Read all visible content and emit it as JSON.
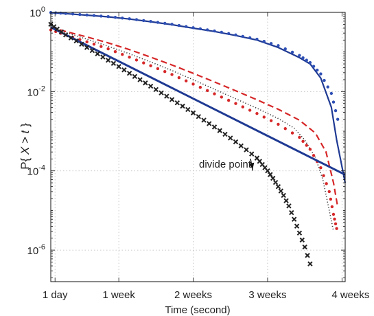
{
  "chart_data": {
    "type": "line",
    "title": "",
    "xlabel": "Time (second)",
    "ylabel": {
      "prefix": "P{ ",
      "var1": "X",
      "mid": " > ",
      "var2": "t",
      "suffix": " }"
    },
    "yscale": "log",
    "xlim": [
      0.6,
      28.3
    ],
    "ylim": [
      1.6e-07,
      1.0
    ],
    "x_ticks": [
      {
        "value": 1,
        "label": "1 day"
      },
      {
        "value": 7,
        "label": "1 week"
      },
      {
        "value": 14,
        "label": "2 weeks"
      },
      {
        "value": 21,
        "label": "3 weeks"
      },
      {
        "value": 28,
        "label": "4 weeks"
      }
    ],
    "y_ticks": [
      {
        "value": 1,
        "base": "10",
        "exp": "0"
      },
      {
        "value": 0.01,
        "base": "10",
        "exp": "-2"
      },
      {
        "value": 0.0001,
        "base": "10",
        "exp": "-4"
      },
      {
        "value": 1e-06,
        "base": "10",
        "exp": "-6"
      }
    ],
    "grid": true,
    "annotation": {
      "text": "divide point",
      "x": 19.6,
      "y": 0.00011
    },
    "series": [
      {
        "style": "solid",
        "color": "#1f3a93",
        "points": [
          [
            0.6,
            0.98
          ],
          [
            2,
            0.93
          ],
          [
            4,
            0.85
          ],
          [
            6,
            0.77
          ],
          [
            8,
            0.68
          ],
          [
            10,
            0.58
          ],
          [
            12,
            0.49
          ],
          [
            14,
            0.4
          ],
          [
            16,
            0.33
          ],
          [
            18,
            0.26
          ],
          [
            20,
            0.2
          ],
          [
            22,
            0.13
          ],
          [
            24,
            0.072
          ],
          [
            25,
            0.05
          ],
          [
            26,
            0.022
          ],
          [
            27,
            0.004
          ],
          [
            27.5,
            0.0006
          ],
          [
            28.3,
            5e-05
          ]
        ]
      },
      {
        "style": "dots",
        "color": "#2e4fb5",
        "points": [
          [
            0.6,
            0.99
          ],
          [
            2,
            0.94
          ],
          [
            4,
            0.86
          ],
          [
            6,
            0.78
          ],
          [
            8,
            0.69
          ],
          [
            10,
            0.59
          ],
          [
            12,
            0.5
          ],
          [
            14,
            0.41
          ],
          [
            16,
            0.34
          ],
          [
            18,
            0.27
          ],
          [
            20,
            0.21
          ],
          [
            22,
            0.145
          ],
          [
            24,
            0.082
          ],
          [
            25,
            0.054
          ],
          [
            26,
            0.028
          ],
          [
            27,
            0.009
          ],
          [
            27.6,
            0.002
          ]
        ]
      },
      {
        "style": "dashed",
        "color": "#d62728",
        "points": [
          [
            0.6,
            0.42
          ],
          [
            2,
            0.33
          ],
          [
            4,
            0.24
          ],
          [
            6,
            0.17
          ],
          [
            8,
            0.115
          ],
          [
            10,
            0.074
          ],
          [
            12,
            0.047
          ],
          [
            14,
            0.029
          ],
          [
            16,
            0.0175
          ],
          [
            18,
            0.0105
          ],
          [
            20,
            0.0062
          ],
          [
            22,
            0.0036
          ],
          [
            24,
            0.0019
          ],
          [
            25.5,
            0.0009
          ],
          [
            26.5,
            0.0003
          ],
          [
            27.2,
            5e-05
          ],
          [
            27.6,
            1.2e-05
          ]
        ]
      },
      {
        "style": "dotted-fine",
        "color": "#333333",
        "points": [
          [
            0.6,
            0.4
          ],
          [
            2,
            0.31
          ],
          [
            4,
            0.21
          ],
          [
            6,
            0.14
          ],
          [
            8,
            0.09
          ],
          [
            10,
            0.056
          ],
          [
            12,
            0.034
          ],
          [
            14,
            0.02
          ],
          [
            16,
            0.0115
          ],
          [
            18,
            0.0066
          ],
          [
            20,
            0.0038
          ],
          [
            22,
            0.0021
          ],
          [
            23.5,
            0.0012
          ],
          [
            24.5,
            0.0006
          ],
          [
            25.5,
            0.00022
          ],
          [
            26.2,
            6e-05
          ],
          [
            26.8,
            1e-05
          ],
          [
            27.2,
            3e-06
          ]
        ]
      },
      {
        "style": "dots",
        "color": "#d62728",
        "points": [
          [
            0.6,
            0.36
          ],
          [
            2,
            0.27
          ],
          [
            4,
            0.18
          ],
          [
            6,
            0.12
          ],
          [
            8,
            0.074
          ],
          [
            10,
            0.045
          ],
          [
            12,
            0.027
          ],
          [
            14,
            0.0155
          ],
          [
            16,
            0.0088
          ],
          [
            18,
            0.005
          ],
          [
            20,
            0.0028
          ],
          [
            22,
            0.0015
          ],
          [
            24,
            0.0007
          ],
          [
            25,
            0.00035
          ],
          [
            26,
            0.00012
          ],
          [
            26.8,
            3e-05
          ],
          [
            27.2,
            8e-06
          ],
          [
            27.5,
            3.5e-06
          ]
        ]
      },
      {
        "style": "solid-thick",
        "color": "#1f3a93",
        "points": [
          [
            0.6,
            0.42
          ],
          [
            28.3,
            8e-05
          ]
        ]
      },
      {
        "style": "crosses",
        "color": "#222222",
        "points": [
          [
            0.6,
            0.5
          ],
          [
            1.2,
            0.38
          ],
          [
            2,
            0.27
          ],
          [
            3,
            0.19
          ],
          [
            4,
            0.13
          ],
          [
            5,
            0.09
          ],
          [
            6,
            0.062
          ],
          [
            7,
            0.043
          ],
          [
            8,
            0.029
          ],
          [
            9,
            0.02
          ],
          [
            10,
            0.0137
          ],
          [
            11,
            0.0093
          ],
          [
            12,
            0.0063
          ],
          [
            13,
            0.0043
          ],
          [
            14,
            0.0029
          ],
          [
            15,
            0.0019
          ],
          [
            16,
            0.00128
          ],
          [
            17,
            0.00084
          ],
          [
            18,
            0.00054
          ],
          [
            19,
            0.00034
          ],
          [
            20,
            0.00021
          ],
          [
            20.5,
            0.000145
          ],
          [
            21,
            0.0001
          ],
          [
            21.5,
            6.5e-05
          ],
          [
            22,
            4e-05
          ],
          [
            22.5,
            2.4e-05
          ],
          [
            23,
            1.3e-05
          ],
          [
            23.5,
            6e-06
          ],
          [
            24,
            2.7e-06
          ],
          [
            24.5,
            1.2e-06
          ],
          [
            25,
            4.5e-07
          ]
        ]
      }
    ]
  }
}
